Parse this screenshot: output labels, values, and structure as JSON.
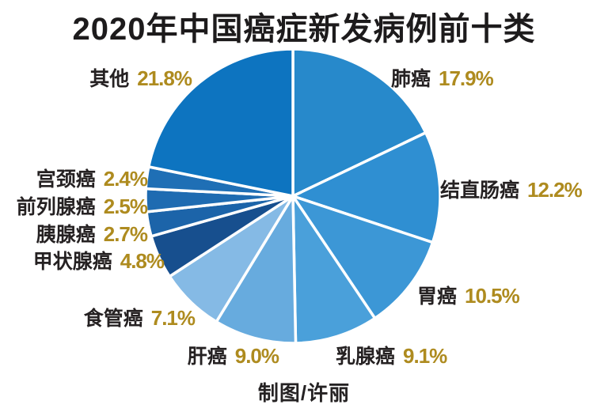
{
  "title": "2020年中国癌症新发病例前十类",
  "credit": "制图/许丽",
  "colors": {
    "title_text": "#1d1b1c",
    "label_text": "#252122",
    "percent_text": "#ae8b1f",
    "divider": "#ffffff",
    "background": "#ffffff"
  },
  "chart_data": {
    "type": "pie",
    "title": "2020年中国癌症新发病例前十类",
    "unit": "%",
    "start_angle_deg": 0,
    "direction": "clockwise",
    "legend_position": "around",
    "slices": [
      {
        "name": "肺癌",
        "value": 17.9,
        "pct_label": "17.9%",
        "color": "#2789cb"
      },
      {
        "name": "结直肠癌",
        "value": 12.2,
        "pct_label": "12.2%",
        "color": "#2f8fd2"
      },
      {
        "name": "胃癌",
        "value": 10.5,
        "pct_label": "10.5%",
        "color": "#3c97d6"
      },
      {
        "name": "乳腺癌",
        "value": 9.1,
        "pct_label": "9.1%",
        "color": "#4aa0da"
      },
      {
        "name": "肝癌",
        "value": 9.0,
        "pct_label": "9.0%",
        "color": "#67abde"
      },
      {
        "name": "食管癌",
        "value": 7.1,
        "pct_label": "7.1%",
        "color": "#85bae5"
      },
      {
        "name": "甲状腺癌",
        "value": 4.8,
        "pct_label": "4.8%",
        "color": "#174f8e"
      },
      {
        "name": "胰腺癌",
        "value": 2.7,
        "pct_label": "2.7%",
        "color": "#1c64a9"
      },
      {
        "name": "前列腺癌",
        "value": 2.5,
        "pct_label": "2.5%",
        "color": "#1e6bb1"
      },
      {
        "name": "宫颈癌",
        "value": 2.4,
        "pct_label": "2.4%",
        "color": "#1f6fb5"
      },
      {
        "name": "其他",
        "value": 21.8,
        "pct_label": "21.8%",
        "color": "#0d74c0"
      }
    ]
  }
}
